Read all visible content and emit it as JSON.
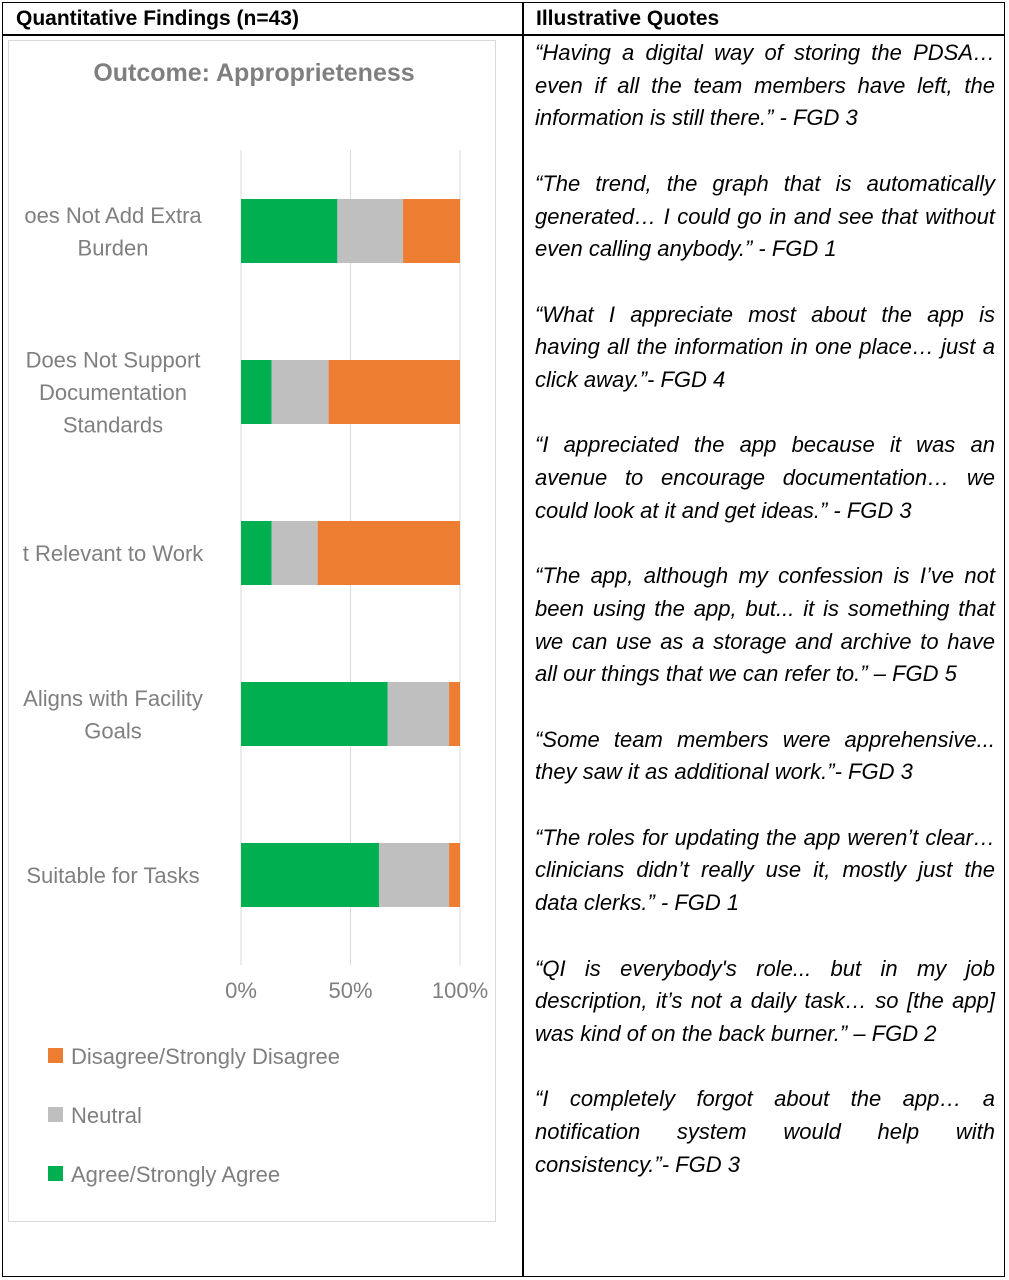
{
  "table": {
    "header_left": "Quantitative Findings (n=43)",
    "header_right": "Illustrative Quotes"
  },
  "quotes": [
    "“Having a digital way of storing the PDSA… even if all the team members have left, the information is still there.” - FGD 3",
    "“The trend, the graph that is automatically generated… I could go in and see that without even calling anybody.” - FGD 1",
    "“What I appreciate most about the app is having all the information in one place… just a click away.”- FGD 4",
    "“I appreciated the app because it was an avenue to encourage documentation… we could look at it and get ideas.” - FGD 3",
    "“The app, although my confession is I’ve not been using the app, but... it is something that we can use as a storage and archive to have all our things that we can refer to.” – FGD 5",
    " “Some team members were apprehensive... they saw it as additional work.”- FGD 3",
    "“The roles for updating the app weren’t clear… clinicians didn’t really use it, mostly just the data clerks.” - FGD 1",
    "“QI is everybody's role... but in my job description, it’s not a daily task… so [the app] was kind of on the back burner.” – FGD 2",
    "“I completely forgot about the app… a notification system would help with consistency.”- FGD 3"
  ],
  "chart_data": {
    "type": "bar",
    "orientation": "horizontal",
    "stacked": true,
    "title": "Outcome: Approprieteness",
    "categories": [
      [
        "oes Not Add Extra",
        "Burden"
      ],
      [
        "Does Not Support",
        "Documentation",
        "Standards"
      ],
      [
        "t Relevant to Work"
      ],
      [
        "Aligns with Facility",
        "Goals"
      ],
      [
        "Suitable for Tasks"
      ]
    ],
    "series": [
      {
        "name": "Agree/Strongly Agree",
        "color": "#00b050",
        "values": [
          44,
          14,
          14,
          67,
          63
        ]
      },
      {
        "name": "Neutral",
        "color": "#bfbfbf",
        "values": [
          30,
          26,
          21,
          28,
          32
        ]
      },
      {
        "name": "Disagree/Strongly Disagree",
        "color": "#ed7d31",
        "values": [
          26,
          60,
          65,
          5,
          5
        ]
      }
    ],
    "xlim": [
      0,
      100
    ],
    "xticks": [
      "0%",
      "50%",
      "100%"
    ],
    "grid": true,
    "legend_position": "bottom",
    "legend_order": [
      "Disagree/Strongly Disagree",
      "Neutral",
      "Agree/Strongly Agree"
    ]
  }
}
